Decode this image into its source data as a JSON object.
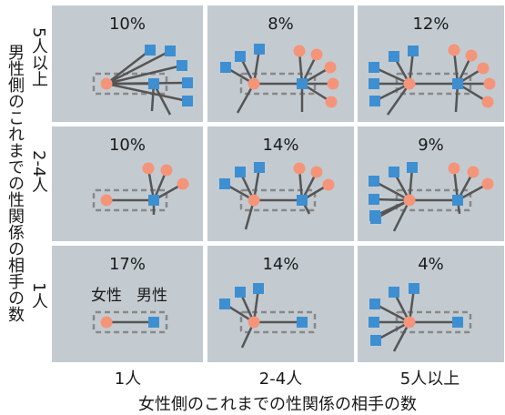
{
  "y_axis_label": "男性側のこれまでの性関係の相手の数",
  "x_axis_label": "女性側のこれまでの性関係の相手の数",
  "row_labels": [
    "5人以上",
    "2-4人",
    "1人"
  ],
  "col_labels": [
    "1人",
    "2-4人",
    "5人以上"
  ],
  "node_labels": {
    "female": "女性",
    "male": "男性"
  },
  "colors": {
    "female": "#f4957a",
    "male": "#3d8fd1",
    "background": "#c3cbd1",
    "edge": "#555555",
    "box": "#888888"
  },
  "cells": [
    {
      "row": 0,
      "col": 0,
      "percent": "10%"
    },
    {
      "row": 0,
      "col": 1,
      "percent": "8%"
    },
    {
      "row": 0,
      "col": 2,
      "percent": "12%"
    },
    {
      "row": 1,
      "col": 0,
      "percent": "10%"
    },
    {
      "row": 1,
      "col": 1,
      "percent": "14%"
    },
    {
      "row": 1,
      "col": 2,
      "percent": "9%"
    },
    {
      "row": 2,
      "col": 0,
      "percent": "17%"
    },
    {
      "row": 2,
      "col": 1,
      "percent": "14%"
    },
    {
      "row": 2,
      "col": 2,
      "percent": "4%"
    }
  ]
}
